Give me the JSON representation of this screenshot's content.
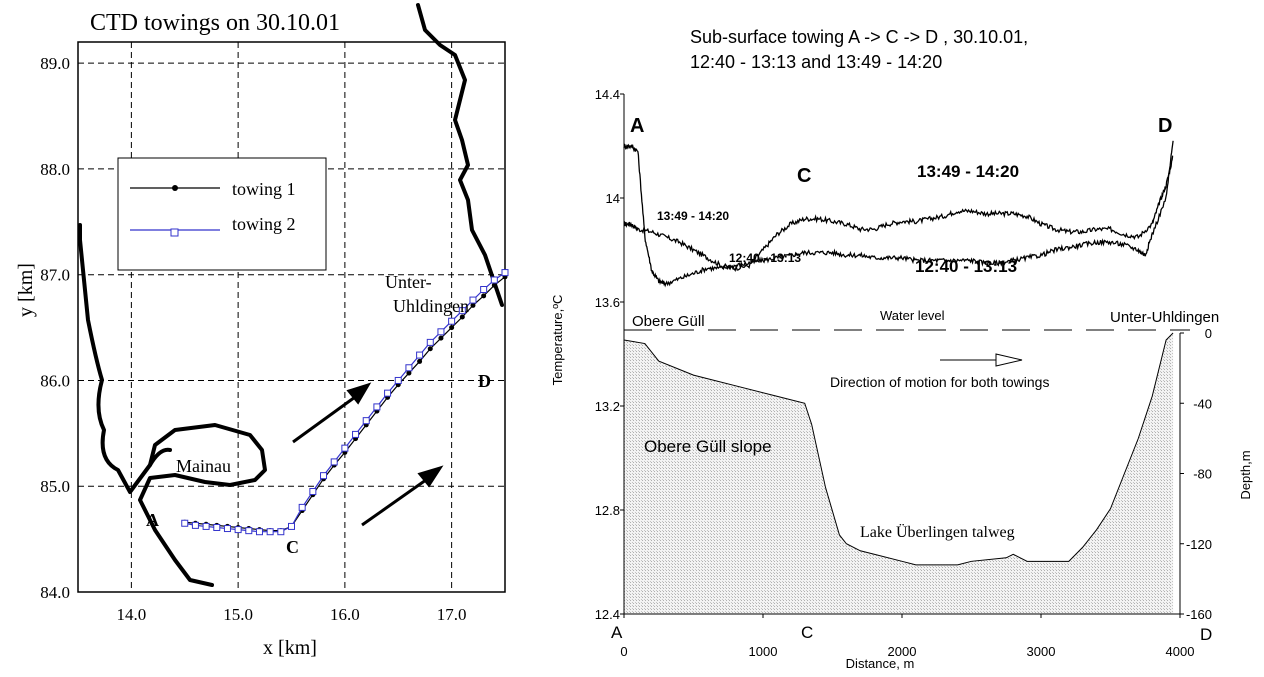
{
  "chart_data": [
    {
      "type": "line",
      "title": "CTD towings on 30.10.01",
      "xlabel": "x [km]",
      "ylabel": "y [km]",
      "xlim": [
        13.5,
        17.5
      ],
      "ylim": [
        84.0,
        89.2
      ],
      "grid": true,
      "legend_position": "upper-left",
      "x_ticks": [
        "14.0",
        "15.0",
        "16.0",
        "17.0"
      ],
      "y_ticks": [
        "84.0",
        "85.0",
        "86.0",
        "87.0",
        "88.0",
        "89.0"
      ],
      "series": [
        {
          "name": "towing 1",
          "color": "#000000",
          "marker": "dot",
          "x": [
            14.5,
            14.6,
            14.7,
            14.8,
            14.9,
            15.0,
            15.1,
            15.2,
            15.3,
            15.4,
            15.5,
            15.6,
            15.7,
            15.8,
            15.9,
            16.0,
            16.1,
            16.2,
            16.3,
            16.4,
            16.5,
            16.6,
            16.7,
            16.8,
            16.9,
            17.0,
            17.1,
            17.2,
            17.3,
            17.4,
            17.5
          ],
          "y": [
            84.66,
            84.65,
            84.64,
            84.63,
            84.62,
            84.61,
            84.6,
            84.59,
            84.58,
            84.58,
            84.62,
            84.77,
            84.92,
            85.07,
            85.2,
            85.32,
            85.45,
            85.58,
            85.71,
            85.84,
            85.96,
            86.07,
            86.18,
            86.3,
            86.4,
            86.5,
            86.6,
            86.71,
            86.8,
            86.9,
            86.98
          ]
        },
        {
          "name": "towing 2",
          "color": "#3333cc",
          "marker": "open-square",
          "x": [
            14.5,
            14.6,
            14.7,
            14.8,
            14.9,
            15.0,
            15.1,
            15.2,
            15.3,
            15.4,
            15.5,
            15.6,
            15.7,
            15.8,
            15.9,
            16.0,
            16.1,
            16.2,
            16.3,
            16.4,
            16.5,
            16.6,
            16.7,
            16.8,
            16.9,
            17.0,
            17.1,
            17.2,
            17.3,
            17.4,
            17.5
          ],
          "y": [
            84.65,
            84.63,
            84.62,
            84.61,
            84.6,
            84.59,
            84.58,
            84.57,
            84.57,
            84.57,
            84.62,
            84.8,
            84.95,
            85.1,
            85.23,
            85.36,
            85.49,
            85.62,
            85.75,
            85.88,
            86.0,
            86.12,
            86.24,
            86.36,
            86.46,
            86.56,
            86.66,
            86.76,
            86.86,
            86.95,
            87.02
          ]
        }
      ],
      "annotations": {
        "mainau": "Mainau",
        "a": "A",
        "c": "C",
        "d": "D",
        "unter": "Unter-",
        "uhldingen": "Uhldingen"
      }
    },
    {
      "type": "line",
      "title_line1": "Sub-surface towing A -> C -> D , 30.10.01,",
      "title_line2": "12:40 - 13:13 and 13:49 - 14:20",
      "xlabel": "Distance, m",
      "ylabel": "Temperature,ºC",
      "y2label": "Depth,m",
      "xlim": [
        0,
        4000
      ],
      "ylim": [
        12.4,
        14.4
      ],
      "y2lim": [
        -160,
        0
      ],
      "x_ticks": [
        "0",
        "1000",
        "2000",
        "3000",
        "4000"
      ],
      "y_ticks": [
        "12.4",
        "12.8",
        "13.2",
        "13.6",
        "14",
        "14.4"
      ],
      "y2_ticks": [
        "0",
        "-40",
        "-80",
        "-120",
        "-160"
      ],
      "series": [
        {
          "name": "13:49 - 14:20",
          "x": [
            0,
            50,
            100,
            200,
            300,
            400,
            500,
            600,
            700,
            800,
            900,
            1000,
            1100,
            1200,
            1300,
            1400,
            1500,
            1600,
            1700,
            1800,
            1900,
            2000,
            2100,
            2200,
            2300,
            2400,
            2500,
            2600,
            2700,
            2800,
            2900,
            3000,
            3100,
            3200,
            3300,
            3400,
            3500,
            3600,
            3700,
            3800,
            3850,
            3900,
            3950
          ],
          "y": [
            13.9,
            13.9,
            13.88,
            13.87,
            13.85,
            13.83,
            13.8,
            13.77,
            13.74,
            13.73,
            13.74,
            13.8,
            13.86,
            13.9,
            13.92,
            13.92,
            13.91,
            13.9,
            13.88,
            13.88,
            13.9,
            13.91,
            13.91,
            13.92,
            13.93,
            13.95,
            13.95,
            13.94,
            13.94,
            13.94,
            13.93,
            13.9,
            13.88,
            13.87,
            13.87,
            13.88,
            13.88,
            13.86,
            13.85,
            13.9,
            13.98,
            14.05,
            14.16
          ]
        },
        {
          "name": "12:40 - 13:13",
          "x": [
            0,
            50,
            100,
            150,
            200,
            250,
            300,
            400,
            500,
            600,
            700,
            800,
            900,
            1000,
            1100,
            1200,
            1300,
            1400,
            1500,
            1600,
            1700,
            1800,
            1900,
            2000,
            2100,
            2200,
            2300,
            2400,
            2500,
            2600,
            2700,
            2800,
            2900,
            3000,
            3100,
            3200,
            3300,
            3400,
            3500,
            3600,
            3700,
            3750,
            3800,
            3900,
            3950
          ],
          "y": [
            14.2,
            14.2,
            14.18,
            13.85,
            13.72,
            13.68,
            13.67,
            13.69,
            13.71,
            13.73,
            13.73,
            13.74,
            13.75,
            13.76,
            13.77,
            13.78,
            13.79,
            13.79,
            13.79,
            13.78,
            13.78,
            13.77,
            13.77,
            13.77,
            13.76,
            13.76,
            13.76,
            13.76,
            13.76,
            13.75,
            13.75,
            13.76,
            13.77,
            13.78,
            13.8,
            13.81,
            13.82,
            13.83,
            13.83,
            13.82,
            13.8,
            13.78,
            13.86,
            14.0,
            14.22
          ]
        }
      ],
      "depth_profile": {
        "x": [
          0,
          150,
          250,
          500,
          800,
          1100,
          1300,
          1350,
          1450,
          1550,
          1600,
          1700,
          1800,
          2000,
          2100,
          2200,
          2400,
          2500,
          2750,
          2800,
          2850,
          2900,
          3000,
          3200,
          3300,
          3400,
          3500,
          3600,
          3700,
          3800,
          3900,
          3950
        ],
        "depth": [
          -4,
          -6,
          -16,
          -24,
          -30,
          -36,
          -40,
          -52,
          -88,
          -115,
          -120,
          -124,
          -126,
          -130,
          -132,
          -132,
          -132,
          -130,
          -128,
          -126,
          -128,
          -130,
          -130,
          -130,
          -122,
          -112,
          -100,
          -80,
          -60,
          -36,
          -4,
          0
        ]
      },
      "annotations": {
        "a_top": "A",
        "d_top": "D",
        "c_top": "C",
        "label_1349_big": "13:49 - 14:20",
        "label_1240_big": "12:40 - 13:13",
        "label_1349_small": "13:49 - 14:20",
        "label_1240_small": "12:40 - 13:13",
        "obere_gull": "Obere Güll",
        "water_level": "Water level",
        "unter_uhldingen": "Unter-Uhldingen",
        "direction": "Direction of motion for both towings",
        "slope": "Obere Güll slope",
        "talweg": "Lake Überlingen talweg",
        "a_bottom": "A",
        "c_bottom": "C",
        "d_bottom": "D"
      }
    }
  ]
}
